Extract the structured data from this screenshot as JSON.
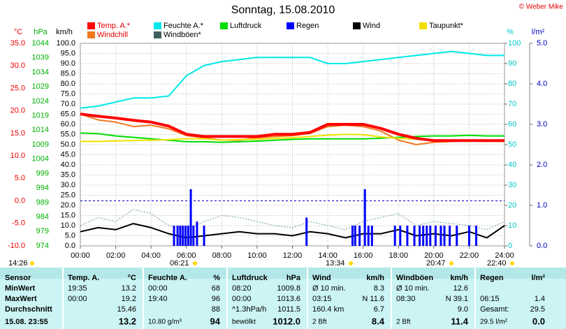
{
  "chart_data": {
    "type": "line",
    "title": "Sonntag, 15.08.2010",
    "credit": "© Weber Mike",
    "axis_labels": {
      "y": "°C",
      "y3": "hPa",
      "y4": "km/h",
      "y2": "%",
      "y5": "l/m²"
    },
    "x": [
      0,
      1,
      2,
      3,
      4,
      5,
      6,
      7,
      8,
      9,
      10,
      11,
      12,
      13,
      14,
      15,
      16,
      17,
      18,
      19,
      20,
      21,
      22,
      23,
      24
    ],
    "xlim": [
      0,
      24
    ],
    "xticks": [
      {
        "value": 0,
        "label": "00:00"
      },
      {
        "value": 2,
        "label": "02:00"
      },
      {
        "value": 4,
        "label": "04:00"
      },
      {
        "value": 6,
        "label": "06:00"
      },
      {
        "value": 8,
        "label": "08:00"
      },
      {
        "value": 10,
        "label": "10:00"
      },
      {
        "value": 12,
        "label": "12:00"
      },
      {
        "value": 14,
        "label": "14:00"
      },
      {
        "value": 16,
        "label": "16:00"
      },
      {
        "value": 18,
        "label": "18:00"
      },
      {
        "value": 20,
        "label": "20:00"
      },
      {
        "value": 22,
        "label": "22:00"
      },
      {
        "value": 24,
        "label": "24:00"
      }
    ],
    "ylim": [
      -10,
      35
    ],
    "yticks": [
      {
        "value": -10,
        "label": "-10.0"
      },
      {
        "value": -5,
        "label": "-5.0"
      },
      {
        "value": 0,
        "label": "0.0"
      },
      {
        "value": 5,
        "label": "5.0"
      },
      {
        "value": 10,
        "label": "10.0"
      },
      {
        "value": 15,
        "label": "15.0"
      },
      {
        "value": 20,
        "label": "20.0"
      },
      {
        "value": 25,
        "label": "25.0"
      },
      {
        "value": 30,
        "label": "30.0"
      },
      {
        "value": 35,
        "label": "35.0"
      }
    ],
    "y3lim": [
      974,
      1044
    ],
    "y3ticks": [
      974,
      979,
      984,
      989,
      994,
      999,
      1004,
      1009,
      1014,
      1019,
      1024,
      1029,
      1034,
      1039,
      1044
    ],
    "y4lim": [
      0,
      100
    ],
    "y4ticks": [
      {
        "value": 0,
        "label": "0.0"
      },
      {
        "value": 5,
        "label": "5.0"
      },
      {
        "value": 10,
        "label": "10.0"
      },
      {
        "value": 15,
        "label": "15.0"
      },
      {
        "value": 20,
        "label": "20.0"
      },
      {
        "value": 25,
        "label": "25.0"
      },
      {
        "value": 30,
        "label": "30.0"
      },
      {
        "value": 35,
        "label": "35.0"
      },
      {
        "value": 40,
        "label": "40.0"
      },
      {
        "value": 45,
        "label": "45.0"
      },
      {
        "value": 50,
        "label": "50.0"
      },
      {
        "value": 55,
        "label": "55.0"
      },
      {
        "value": 60,
        "label": "60.0"
      },
      {
        "value": 65,
        "label": "65.0"
      },
      {
        "value": 70,
        "label": "70.0"
      },
      {
        "value": 75,
        "label": "75.0"
      },
      {
        "value": 80,
        "label": "80.0"
      },
      {
        "value": 85,
        "label": "85.0"
      },
      {
        "value": 90,
        "label": "90.0"
      },
      {
        "value": 95,
        "label": "95.0"
      },
      {
        "value": 100,
        "label": "100.0"
      }
    ],
    "y2lim": [
      0,
      100
    ],
    "y2ticks": [
      0,
      10,
      20,
      30,
      40,
      50,
      60,
      70,
      80,
      90,
      100
    ],
    "y5lim": [
      0,
      5
    ],
    "y5ticks": [
      {
        "value": 0,
        "label": "0.0"
      },
      {
        "value": 1,
        "label": "1.0"
      },
      {
        "value": 2,
        "label": "2.0"
      },
      {
        "value": 3,
        "label": "3.0"
      },
      {
        "value": 4,
        "label": "4.0"
      },
      {
        "value": 5,
        "label": "5.0"
      }
    ],
    "axis_colors": {
      "y": "#ee0000",
      "y3": "#00b000",
      "y4": "#000000",
      "y2": "#00c8c8",
      "y5": "#0000c0"
    },
    "grid": true,
    "ref_line": 0,
    "series": [
      {
        "name": "Temp. A.*",
        "color": "#ff0000",
        "axis": "y",
        "emphasis": true,
        "values": [
          19.3,
          18.8,
          18.4,
          17.9,
          17.5,
          16.6,
          14.8,
          14.3,
          14.3,
          14.3,
          14.3,
          14.8,
          14.8,
          15.2,
          17.0,
          17.0,
          17.0,
          16.1,
          14.8,
          13.9,
          13.4,
          13.4,
          13.4,
          13.4,
          13.4
        ]
      },
      {
        "name": "Feuchte A.*",
        "color": "#00e8e8",
        "axis": "y2",
        "values": [
          68,
          69,
          71,
          73,
          73,
          74,
          84,
          89,
          91,
          92,
          93,
          93,
          93,
          93,
          90,
          90,
          91,
          92,
          93,
          94,
          95,
          96,
          95,
          94,
          94
        ]
      },
      {
        "name": "Luftdruck",
        "color": "#00dd00",
        "axis": "y3",
        "values": [
          1013.0,
          1012.8,
          1012.0,
          1011.5,
          1011.0,
          1010.5,
          1010.0,
          1010.0,
          1009.8,
          1010.0,
          1010.2,
          1010.5,
          1010.8,
          1011.0,
          1011.0,
          1011.0,
          1011.0,
          1011.2,
          1011.5,
          1011.8,
          1012.0,
          1012.0,
          1012.2,
          1012.0,
          1012.0
        ]
      },
      {
        "name": "Regen",
        "color": "#0000ff",
        "axis": "y5",
        "style": "bar",
        "x": [
          5.3,
          5.5,
          5.65,
          5.8,
          5.95,
          6.1,
          6.25,
          6.4,
          6.6,
          7.0,
          12.8,
          15.4,
          15.55,
          15.8,
          16.1,
          16.3,
          16.5,
          17.8,
          18.1,
          18.5,
          18.9,
          19.2,
          19.4,
          19.6,
          19.8,
          20.1,
          20.4,
          20.6,
          20.9,
          21.3,
          22.0,
          22.4
        ],
        "values": [
          0.5,
          0.5,
          0.5,
          0.5,
          0.5,
          0.5,
          1.4,
          0.5,
          0.6,
          0.5,
          0.7,
          0.5,
          0.5,
          0.5,
          1.4,
          0.5,
          0.5,
          0.5,
          0.5,
          0.5,
          0.5,
          0.5,
          0.5,
          0.5,
          0.5,
          0.5,
          0.5,
          0.5,
          0.5,
          0.5,
          0.5,
          0.5
        ]
      },
      {
        "name": "Wind",
        "color": "#000000",
        "axis": "y4",
        "values": [
          7,
          9,
          8,
          11,
          9,
          6,
          4,
          5,
          6,
          7,
          6,
          6,
          5,
          7,
          6,
          4,
          6,
          6,
          8,
          5,
          6,
          5,
          7,
          4,
          10
        ]
      },
      {
        "name": "Taupunkt*",
        "color": "#f0e000",
        "axis": "y",
        "values": [
          13.2,
          13.2,
          13.3,
          13.4,
          13.5,
          13.6,
          13.8,
          13.8,
          13.5,
          13.6,
          13.7,
          13.9,
          14.0,
          14.3,
          14.6,
          14.8,
          14.7,
          14.2,
          13.9,
          13.7,
          13.5,
          13.4,
          13.3,
          13.2,
          13.2
        ]
      },
      {
        "name": "Windchill",
        "color": "#f07820",
        "axis": "y",
        "values": [
          19.3,
          18.0,
          17.5,
          16.5,
          16.8,
          16.0,
          14.5,
          14.0,
          13.5,
          13.5,
          14.0,
          14.3,
          14.5,
          15.0,
          16.5,
          16.8,
          16.5,
          15.5,
          13.5,
          12.5,
          13.0,
          13.2,
          13.3,
          13.2,
          13.4
        ]
      },
      {
        "name": "Windböen*",
        "color": "#6a98a8",
        "axis": "y4",
        "dash": true,
        "values": [
          10,
          14,
          12,
          18,
          16,
          10,
          8,
          12,
          15,
          14,
          12,
          10,
          9,
          12,
          10,
          8,
          12,
          14,
          16,
          10,
          12,
          11,
          10,
          8,
          12
        ]
      }
    ],
    "markers": [
      "14:26",
      "06:21",
      "13:34",
      "20:47",
      "22:40"
    ]
  },
  "table": {
    "panels": [
      {
        "title": "Sensor",
        "rows": [
          "MinWert",
          "MaxWert",
          "Durchschnitt",
          "15.08. 23:55"
        ]
      },
      {
        "title": "Temp. A.",
        "unit": "°C",
        "rows": [
          [
            "19:35",
            "13.2"
          ],
          [
            "00:00",
            "19.2"
          ],
          [
            "15.46"
          ],
          [
            "13.2"
          ]
        ]
      },
      {
        "title": "Feuchte A.",
        "unit": "%",
        "rows": [
          [
            "00:00",
            "68"
          ],
          [
            "19:40",
            "96"
          ],
          [
            "88"
          ],
          [
            "10.80 g/m³",
            "94"
          ]
        ]
      },
      {
        "title": "Luftdruck",
        "unit": "hPa",
        "rows": [
          [
            "08:20",
            "1009.8"
          ],
          [
            "00:00",
            "1013.6"
          ],
          [
            "^1.3hPa/h",
            "1011.5"
          ],
          [
            "bewölkt",
            "1012.0"
          ]
        ]
      },
      {
        "title": "Wind",
        "unit": "km/h",
        "rows": [
          [
            "Ø 10 min.",
            "8.3"
          ],
          [
            "03:15",
            "N 11.6"
          ],
          [
            "160.4 km",
            "6.7"
          ],
          [
            "2 Bft",
            "8.4"
          ]
        ]
      },
      {
        "title": "Windböen",
        "unit": "km/h",
        "rows": [
          [
            "Ø 10 min.",
            "12.6"
          ],
          [
            "08:30",
            "N 39.1"
          ],
          [
            "9.0"
          ],
          [
            "2 Bft",
            "11.4"
          ]
        ]
      },
      {
        "title": "Regen",
        "unit": "l/m²",
        "rows": [
          [],
          [
            "06:15",
            "1.4"
          ],
          [
            "Gesamt:",
            "29.5"
          ],
          [
            "29.5 l/m²",
            "0.0"
          ]
        ]
      }
    ]
  }
}
